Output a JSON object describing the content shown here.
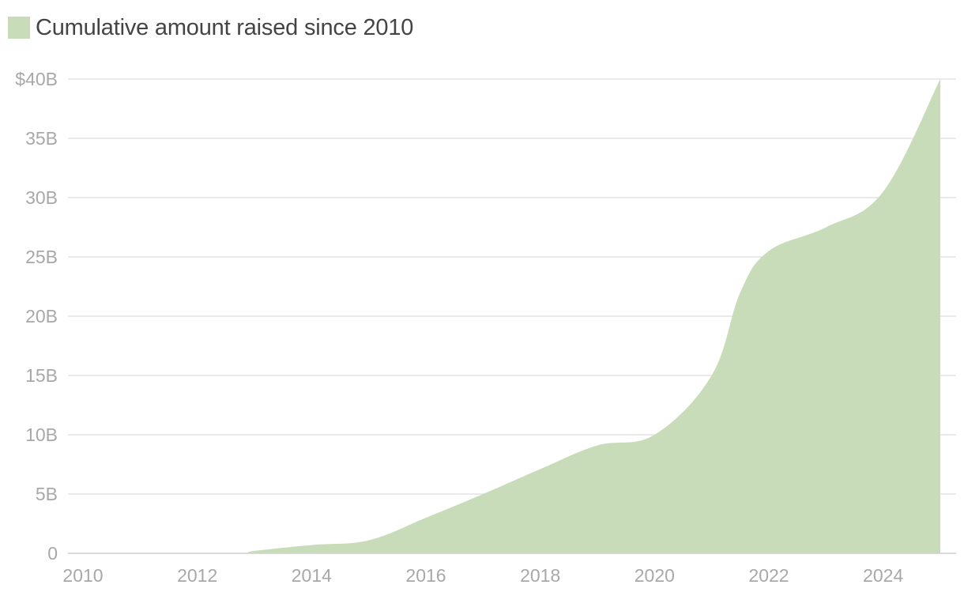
{
  "chart_data": {
    "type": "area",
    "title": "",
    "xlabel": "",
    "ylabel": "",
    "legend": {
      "placement": "top-left",
      "entries": [
        "Cumulative amount raised since 2010"
      ]
    },
    "grid": true,
    "xlim": [
      2010,
      2025
    ],
    "ylim": [
      0,
      40
    ],
    "x_ticks": [
      2010,
      2012,
      2014,
      2016,
      2018,
      2020,
      2022,
      2024
    ],
    "x_tick_labels": [
      "2010",
      "2012",
      "2014",
      "2016",
      "2018",
      "2020",
      "2022",
      "2024"
    ],
    "y_ticks": [
      0,
      5,
      10,
      15,
      20,
      25,
      30,
      35,
      40
    ],
    "y_tick_labels": [
      "0",
      "5B",
      "10B",
      "15B",
      "20B",
      "25B",
      "30B",
      "35B",
      "$40B"
    ],
    "series": [
      {
        "name": "Cumulative amount raised since 2010",
        "color": "#c8dcb9",
        "x": [
          2010,
          2011,
          2012,
          2012.8,
          2013,
          2014,
          2015,
          2016,
          2017,
          2018,
          2019,
          2020,
          2021,
          2021.5,
          2022,
          2023,
          2024,
          2025
        ],
        "values": [
          0,
          0,
          0,
          0,
          0.2,
          0.7,
          1.1,
          3.0,
          5.0,
          7.1,
          9.1,
          10.0,
          15.0,
          22.0,
          25.5,
          27.5,
          30.5,
          40.0
        ]
      }
    ]
  }
}
